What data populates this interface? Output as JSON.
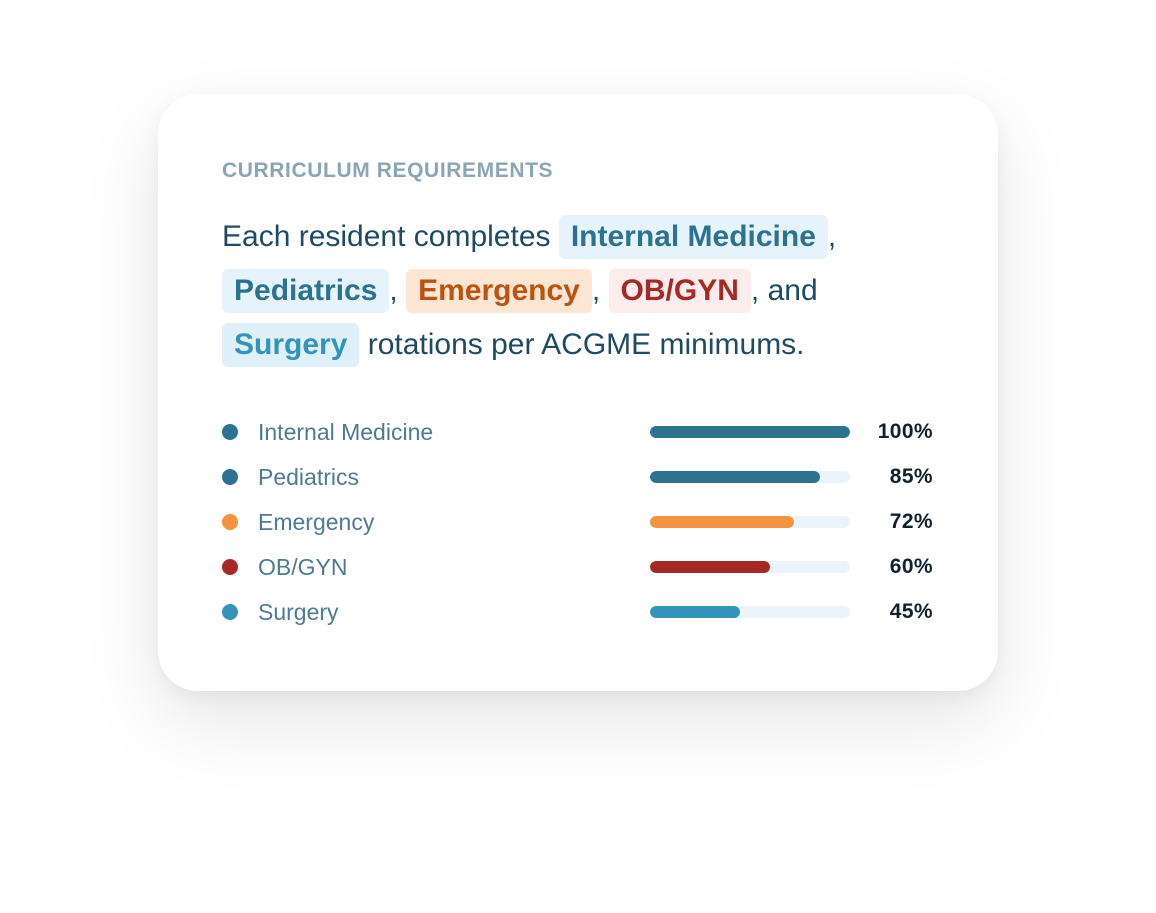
{
  "card": {
    "eyebrow": "CURRICULUM REQUIREMENTS",
    "sentence": {
      "prefix": "Each resident completes ",
      "sep1": ",",
      "sep2": ",",
      "sep3": ",",
      "and_text": ", and",
      "suffix": " rotations per ACGME minimums.",
      "chips": {
        "internal": "Internal Medicine",
        "pediatrics": "Pediatrics",
        "emergency": "Emergency",
        "obgyn": "OB/GYN",
        "surgery": "Surgery"
      }
    },
    "rotations": [
      {
        "label": "Internal Medicine",
        "percent_text": "100%",
        "value": 100,
        "color": "#2d7391"
      },
      {
        "label": "Pediatrics",
        "percent_text": "85%",
        "value": 85,
        "color": "#2d7391"
      },
      {
        "label": "Emergency",
        "percent_text": "72%",
        "value": 72,
        "color": "#f5943f"
      },
      {
        "label": "OB/GYN",
        "percent_text": "60%",
        "value": 60,
        "color": "#a52a24"
      },
      {
        "label": "Surgery",
        "percent_text": "45%",
        "value": 45,
        "color": "#3593bb"
      }
    ]
  }
}
